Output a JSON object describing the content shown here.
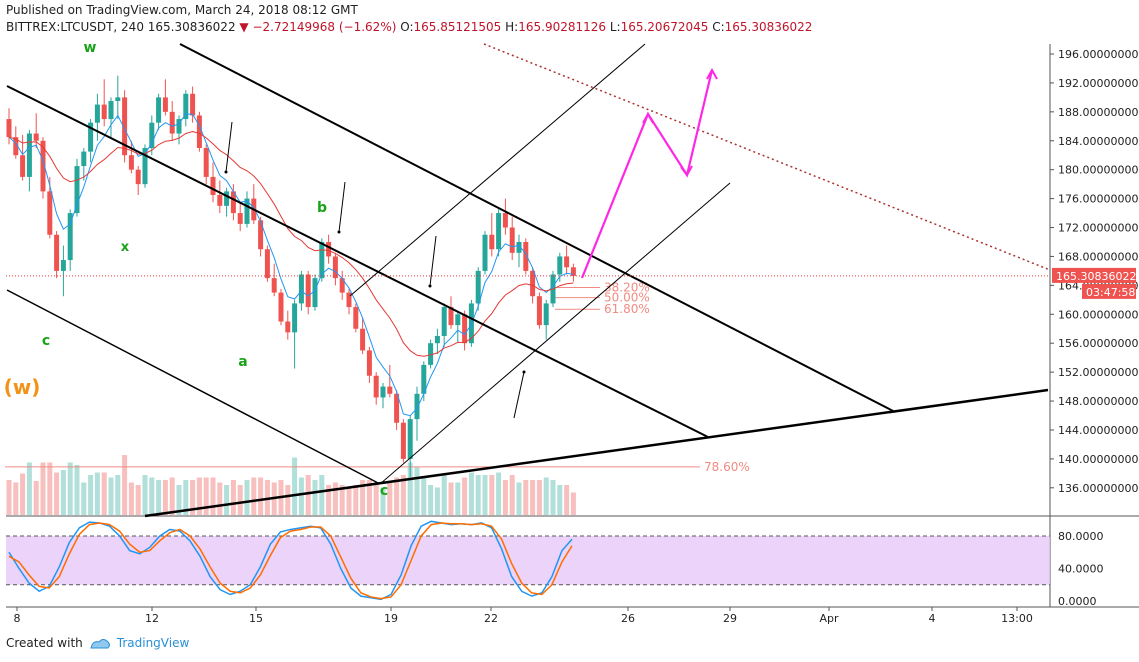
{
  "header": {
    "published": "Published on TradingView.com, March 24, 2018 08:12 GMT",
    "symbol": "BITTREX:LTCUSDT, 240",
    "last": "165.30836022",
    "change": "−2.72149968 (−1.62%)",
    "o_label": "O:",
    "o": "165.85121505",
    "h_label": "H:",
    "h": "165.90281126",
    "l_label": "L:",
    "l": "165.20672045",
    "c_label": "C:",
    "c": "165.30836022"
  },
  "footer": {
    "created_with": "Created with",
    "brand": "TradingView"
  },
  "colors": {
    "up": "#26a69a",
    "down": "#ef5350",
    "ema_fast": "#2196f3",
    "ema_slow": "#e53935",
    "stoch_k": "#2196f3",
    "stoch_d": "#ff6d00",
    "stoch_band": "#e6c8f7",
    "projection": "#ff27e6",
    "label_green": "#1aa31a",
    "label_orange": "#f29216"
  },
  "chart_data": {
    "type": "candlestick",
    "price_ticks": [
      "196.00000000",
      "192.00000000",
      "188.00000000",
      "184.00000000",
      "180.00000000",
      "176.00000000",
      "172.00000000",
      "168.00000000",
      "164.00000000",
      "160.00000000",
      "156.00000000",
      "152.00000000",
      "148.00000000",
      "144.00000000",
      "140.00000000",
      "136.00000000"
    ],
    "current_price_label": "165.30836022",
    "countdown_label": "03:47:58",
    "time_ticks": [
      "8",
      "12",
      "15",
      "19",
      "22",
      "26",
      "29",
      "Apr",
      "4",
      "13:00"
    ],
    "stoch_ticks": [
      "80.0000",
      "40.0000",
      "0.0000"
    ],
    "fib_levels": [
      {
        "label": "38.20%",
        "price": 163.7
      },
      {
        "label": "50.00%",
        "price": 162.3
      },
      {
        "label": "61.80%",
        "price": 160.7
      },
      {
        "label": "78.60%",
        "price": 138.9
      }
    ],
    "wave_labels": [
      {
        "text": "w",
        "color": "green"
      },
      {
        "text": "x",
        "color": "green"
      },
      {
        "text": "c",
        "color": "green"
      },
      {
        "text": "a",
        "color": "green"
      },
      {
        "text": "b",
        "color": "green"
      },
      {
        "text": "c",
        "color": "green"
      },
      {
        "text": "(w)",
        "color": "orange"
      }
    ],
    "candles": [
      [
        187.0,
        188.5,
        183.5,
        184.5
      ],
      [
        184.5,
        186.0,
        181.5,
        182.0
      ],
      [
        182.0,
        184.8,
        178.5,
        179.0
      ],
      [
        179.0,
        185.5,
        177.0,
        185.0
      ],
      [
        185.0,
        187.8,
        183.0,
        184.0
      ],
      [
        184.0,
        184.5,
        176.0,
        177.0
      ],
      [
        177.0,
        179.0,
        170.5,
        171.0
      ],
      [
        171.0,
        171.5,
        165.0,
        166.0
      ],
      [
        166.0,
        169.5,
        162.5,
        167.5
      ],
      [
        167.5,
        174.5,
        166.0,
        174.0
      ],
      [
        174.0,
        181.5,
        173.5,
        180.5
      ],
      [
        180.5,
        183.0,
        178.5,
        182.5
      ],
      [
        182.5,
        187.0,
        181.0,
        186.5
      ],
      [
        186.5,
        190.5,
        184.0,
        189.0
      ],
      [
        189.0,
        192.5,
        186.0,
        187.0
      ],
      [
        187.0,
        190.0,
        184.5,
        189.5
      ],
      [
        189.5,
        193.0,
        187.0,
        190.0
      ],
      [
        190.0,
        191.0,
        181.0,
        182.0
      ],
      [
        182.0,
        184.0,
        179.5,
        180.0
      ],
      [
        180.0,
        180.5,
        176.5,
        178.0
      ],
      [
        178.0,
        183.5,
        177.5,
        183.0
      ],
      [
        183.0,
        187.5,
        182.0,
        186.5
      ],
      [
        186.5,
        190.5,
        185.5,
        190.0
      ],
      [
        190.0,
        192.5,
        187.5,
        188.0
      ],
      [
        188.0,
        189.5,
        184.0,
        185.0
      ],
      [
        185.0,
        187.5,
        183.5,
        187.0
      ],
      [
        187.0,
        191.0,
        186.0,
        190.5
      ],
      [
        190.5,
        191.5,
        186.5,
        187.5
      ],
      [
        187.5,
        188.0,
        182.5,
        183.0
      ],
      [
        183.0,
        183.5,
        178.0,
        179.0
      ],
      [
        179.0,
        181.0,
        175.5,
        176.5
      ],
      [
        176.5,
        178.5,
        174.0,
        175.0
      ],
      [
        175.0,
        177.5,
        173.5,
        177.0
      ],
      [
        177.0,
        178.0,
        173.0,
        174.0
      ],
      [
        174.0,
        175.5,
        171.5,
        172.5
      ],
      [
        172.5,
        177.0,
        172.0,
        176.0
      ],
      [
        176.0,
        178.0,
        172.5,
        173.0
      ],
      [
        173.0,
        173.5,
        168.0,
        169.0
      ],
      [
        169.0,
        169.5,
        164.5,
        165.0
      ],
      [
        165.0,
        167.0,
        162.5,
        163.0
      ],
      [
        163.0,
        163.5,
        158.5,
        159.0
      ],
      [
        159.0,
        160.5,
        156.5,
        157.5
      ],
      [
        157.5,
        162.0,
        152.5,
        161.5
      ],
      [
        161.5,
        166.0,
        160.5,
        165.5
      ],
      [
        165.5,
        166.0,
        160.0,
        161.0
      ],
      [
        161.0,
        165.5,
        160.5,
        165.0
      ],
      [
        165.0,
        170.5,
        164.5,
        170.0
      ],
      [
        170.0,
        171.0,
        167.0,
        168.0
      ],
      [
        168.0,
        168.5,
        164.0,
        165.0
      ],
      [
        165.0,
        166.0,
        162.0,
        163.0
      ],
      [
        163.0,
        163.5,
        160.0,
        161.0
      ],
      [
        161.0,
        161.5,
        157.5,
        158.0
      ],
      [
        158.0,
        159.5,
        154.5,
        155.0
      ],
      [
        155.0,
        155.5,
        150.5,
        151.5
      ],
      [
        151.5,
        152.0,
        147.5,
        148.5
      ],
      [
        148.5,
        150.5,
        147.0,
        150.0
      ],
      [
        150.0,
        153.0,
        148.5,
        149.0
      ],
      [
        149.0,
        149.5,
        144.0,
        145.0
      ],
      [
        145.0,
        145.5,
        139.5,
        140.0
      ],
      [
        140.0,
        146.0,
        137.5,
        145.5
      ],
      [
        145.5,
        150.0,
        142.5,
        149.0
      ],
      [
        149.0,
        153.5,
        148.0,
        153.0
      ],
      [
        153.0,
        156.5,
        152.5,
        156.0
      ],
      [
        156.0,
        158.0,
        154.5,
        157.0
      ],
      [
        157.0,
        161.5,
        155.5,
        161.0
      ],
      [
        161.0,
        162.5,
        158.0,
        158.5
      ],
      [
        158.5,
        160.5,
        156.0,
        160.0
      ],
      [
        160.0,
        160.5,
        155.0,
        156.0
      ],
      [
        156.0,
        162.0,
        155.5,
        161.5
      ],
      [
        161.5,
        166.5,
        160.5,
        166.0
      ],
      [
        166.0,
        171.5,
        165.5,
        171.0
      ],
      [
        171.0,
        174.0,
        168.0,
        169.0
      ],
      [
        169.0,
        174.5,
        168.0,
        174.0
      ],
      [
        174.0,
        176.0,
        171.0,
        172.0
      ],
      [
        172.0,
        173.5,
        167.5,
        168.5
      ],
      [
        168.5,
        171.0,
        166.5,
        170.0
      ],
      [
        170.0,
        170.5,
        165.5,
        166.0
      ],
      [
        166.0,
        166.5,
        161.5,
        162.5
      ],
      [
        162.5,
        163.0,
        158.0,
        158.5
      ],
      [
        158.5,
        162.0,
        156.5,
        161.5
      ],
      [
        161.5,
        166.0,
        161.0,
        165.5
      ],
      [
        165.5,
        168.5,
        164.5,
        168.0
      ],
      [
        168.0,
        169.5,
        165.5,
        166.5
      ],
      [
        166.5,
        167.0,
        164.5,
        165.3
      ]
    ],
    "stoch_k": [
      60,
      40,
      22,
      12,
      18,
      42,
      72,
      90,
      97,
      96,
      92,
      80,
      62,
      58,
      66,
      80,
      88,
      86,
      74,
      55,
      30,
      14,
      8,
      12,
      20,
      42,
      70,
      85,
      88,
      90,
      92,
      90,
      70,
      40,
      16,
      6,
      4,
      2,
      8,
      32,
      68,
      92,
      98,
      96,
      94,
      95,
      94,
      96,
      90,
      64,
      30,
      12,
      6,
      10,
      30,
      62,
      76
    ],
    "stoch_d": [
      55,
      48,
      32,
      18,
      16,
      30,
      58,
      82,
      94,
      96,
      94,
      86,
      70,
      60,
      62,
      74,
      84,
      88,
      80,
      64,
      42,
      22,
      12,
      10,
      16,
      32,
      56,
      78,
      86,
      88,
      91,
      91,
      80,
      54,
      28,
      10,
      5,
      3,
      5,
      20,
      50,
      80,
      94,
      96,
      95,
      95,
      94,
      95,
      92,
      76,
      46,
      22,
      10,
      8,
      20,
      48,
      68
    ]
  }
}
